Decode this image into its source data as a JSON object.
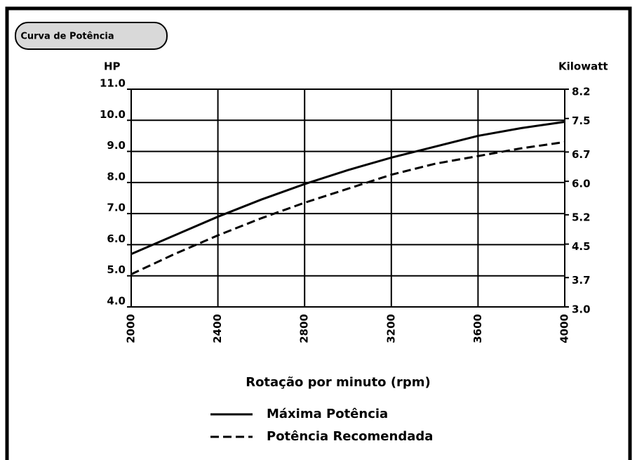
{
  "chart_data": {
    "type": "line",
    "badge": "Curva de Potência",
    "ylabel": "HP",
    "y2label": "Kilowatt",
    "xlabel": "Rotação por minuto (rpm)",
    "x": [
      2000,
      2200,
      2400,
      2600,
      2800,
      3000,
      3200,
      3400,
      3600,
      3800,
      4000
    ],
    "series": [
      {
        "name": "Máxima Potência",
        "color": "#000000",
        "dash": false,
        "values": [
          5.7,
          6.3,
          6.9,
          7.45,
          7.95,
          8.4,
          8.8,
          9.15,
          9.5,
          9.75,
          9.95
        ]
      },
      {
        "name": "Potência Recomendada",
        "color": "#000000",
        "dash": true,
        "values": [
          5.05,
          5.7,
          6.3,
          6.85,
          7.35,
          7.8,
          8.25,
          8.6,
          8.85,
          9.1,
          9.3
        ]
      }
    ],
    "xlim": [
      2000,
      4000
    ],
    "xticks": [
      2000,
      2400,
      2800,
      3200,
      3600,
      4000
    ],
    "ylim": [
      4,
      11
    ],
    "yticks": [
      {
        "value": 4,
        "label": "4.0"
      },
      {
        "value": 5,
        "label": "5.0"
      },
      {
        "value": 6,
        "label": "6.0"
      },
      {
        "value": 7,
        "label": "7.0"
      },
      {
        "value": 8,
        "label": "8.0"
      },
      {
        "value": 9,
        "label": "9.0"
      },
      {
        "value": 10,
        "label": "10.0"
      },
      {
        "value": 11,
        "label": "11.0"
      }
    ],
    "y2lim": [
      3,
      8.2
    ],
    "y2ticks": [
      {
        "value": 3,
        "label": "3.0"
      },
      3.7,
      4.5,
      5.2,
      {
        "value": 6,
        "label": "6.0"
      },
      6.7,
      7.5,
      8.2
    ],
    "grid": true
  }
}
